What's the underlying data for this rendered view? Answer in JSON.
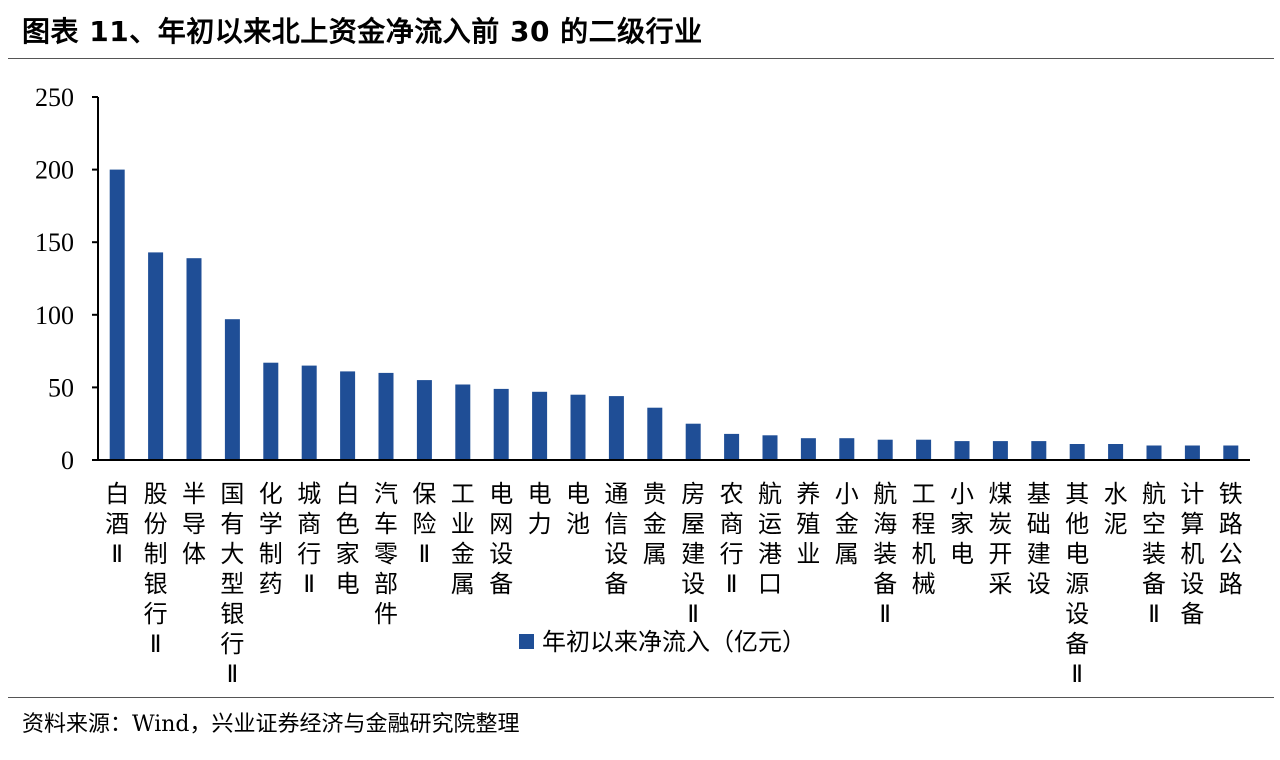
{
  "header": {
    "title": "图表 11、年初以来北上资金净流入前 30 的二级行业"
  },
  "footer": {
    "source": "资料来源：Wind，兴业证券经济与金融研究院整理"
  },
  "chart_data": {
    "type": "bar",
    "title": "图表 11、年初以来北上资金净流入前 30 的二级行业",
    "xlabel": "",
    "ylabel": "",
    "ylim": [
      0,
      250
    ],
    "yticks": [
      0,
      50,
      100,
      150,
      200,
      250
    ],
    "grid": false,
    "legend_position": "bottom",
    "bar_color": "#1f4e96",
    "categories": [
      "白酒Ⅱ",
      "股份制银行Ⅱ",
      "半导体",
      "国有大型银行Ⅱ",
      "化学制药",
      "城商行Ⅱ",
      "白色家电",
      "汽车零部件",
      "保险Ⅱ",
      "工业金属",
      "电网设备",
      "电力",
      "电池",
      "通信设备",
      "贵金属",
      "房屋建设Ⅱ",
      "农商行Ⅱ",
      "航运港口",
      "养殖业",
      "小金属",
      "航海装备Ⅱ",
      "工程机械",
      "小家电",
      "煤炭开采",
      "基础建设",
      "其他电源设备Ⅱ",
      "水泥",
      "航空装备Ⅱ",
      "计算机设备",
      "铁路公路"
    ],
    "series": [
      {
        "name": "年初以来净流入（亿元）",
        "values": [
          200,
          143,
          139,
          97,
          67,
          65,
          61,
          60,
          55,
          52,
          49,
          47,
          45,
          44,
          36,
          25,
          18,
          17,
          15,
          15,
          14,
          14,
          13,
          13,
          13,
          11,
          11,
          10,
          10,
          10
        ]
      }
    ]
  }
}
